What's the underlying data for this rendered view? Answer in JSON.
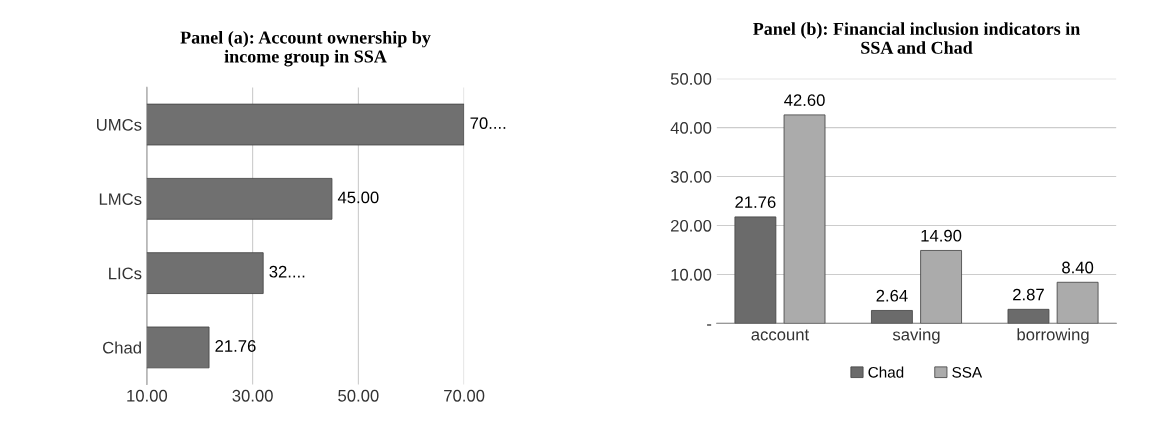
{
  "chart_data": [
    {
      "type": "bar",
      "orientation": "horizontal",
      "title": "Panel (a): Account ownership by\nincome group in SSA",
      "categories": [
        "UMCs",
        "LMCs",
        "LICs",
        "Chad"
      ],
      "series": [
        {
          "color": "#707070",
          "values": [
            70,
            45,
            32,
            21.76
          ],
          "value_labels": [
            "70....",
            "45.00",
            "32....",
            "21.76"
          ]
        }
      ],
      "xlim": [
        10,
        70
      ],
      "xticks": [
        {
          "value": 10,
          "label": "10.00"
        },
        {
          "value": 30,
          "label": "30.00"
        },
        {
          "value": 50,
          "label": "50.00"
        },
        {
          "value": 70,
          "label": "70.00"
        }
      ],
      "grid": "x",
      "legend": false
    },
    {
      "type": "bar",
      "title": "Panel (b): Financial inclusion indicators in\nSSA and Chad",
      "categories": [
        "account",
        "saving",
        "borrowing"
      ],
      "series": [
        {
          "name": "Chad",
          "color": "#6b6b6b",
          "values": [
            21.76,
            2.64,
            2.87
          ],
          "value_labels": [
            "21.76",
            "2.64",
            "2.87"
          ]
        },
        {
          "name": "SSA",
          "color": "#ababab",
          "values": [
            42.6,
            14.9,
            8.4
          ],
          "value_labels": [
            "42.60",
            "14.90",
            "8.40"
          ]
        }
      ],
      "ylim": [
        0,
        50
      ],
      "yticks": [
        {
          "value": 0,
          "label": "-"
        },
        {
          "value": 10,
          "label": "10.00"
        },
        {
          "value": 20,
          "label": "20.00"
        },
        {
          "value": 30,
          "label": "30.00"
        },
        {
          "value": 40,
          "label": "40.00"
        },
        {
          "value": 50,
          "label": "50.00"
        }
      ],
      "grid": "y",
      "legend": "bottom"
    }
  ]
}
